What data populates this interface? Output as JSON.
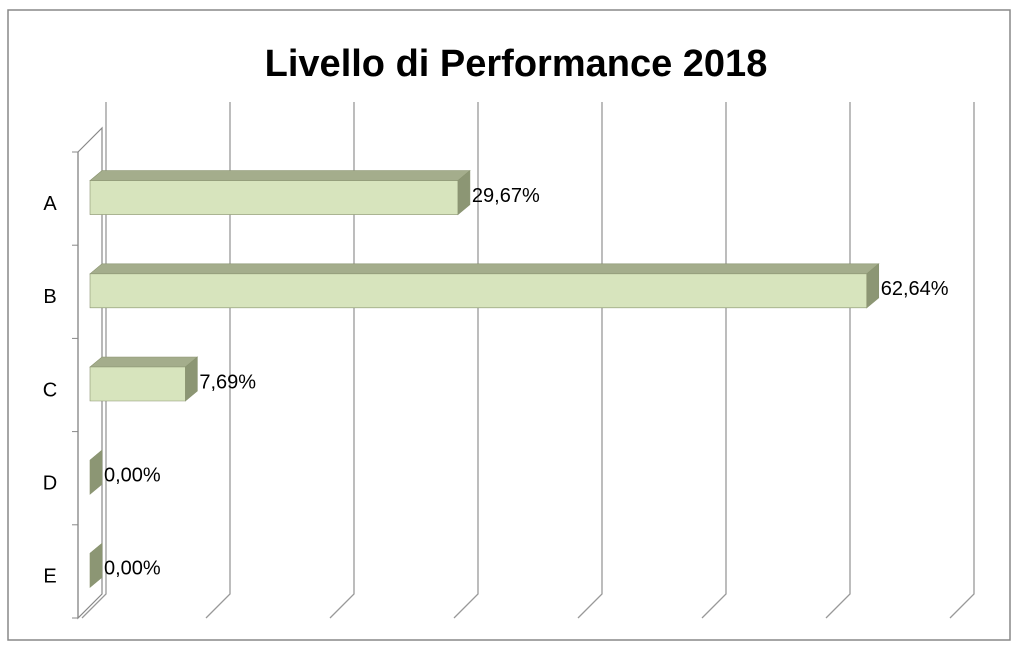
{
  "chart_data": {
    "type": "bar3d_horizontal",
    "title": "Livello di Performance 2018",
    "categories": [
      "A",
      "B",
      "C",
      "D",
      "E"
    ],
    "values": [
      29.67,
      62.64,
      7.69,
      0,
      0
    ],
    "value_labels": [
      "29,67%",
      "62,64%",
      "7,69%",
      "0,00%",
      "0,00%"
    ],
    "color": "#d7e4bd",
    "xlim": [
      0,
      70
    ],
    "xticks": [
      0,
      10,
      20,
      30,
      40,
      50,
      60,
      70
    ],
    "grid": true
  }
}
